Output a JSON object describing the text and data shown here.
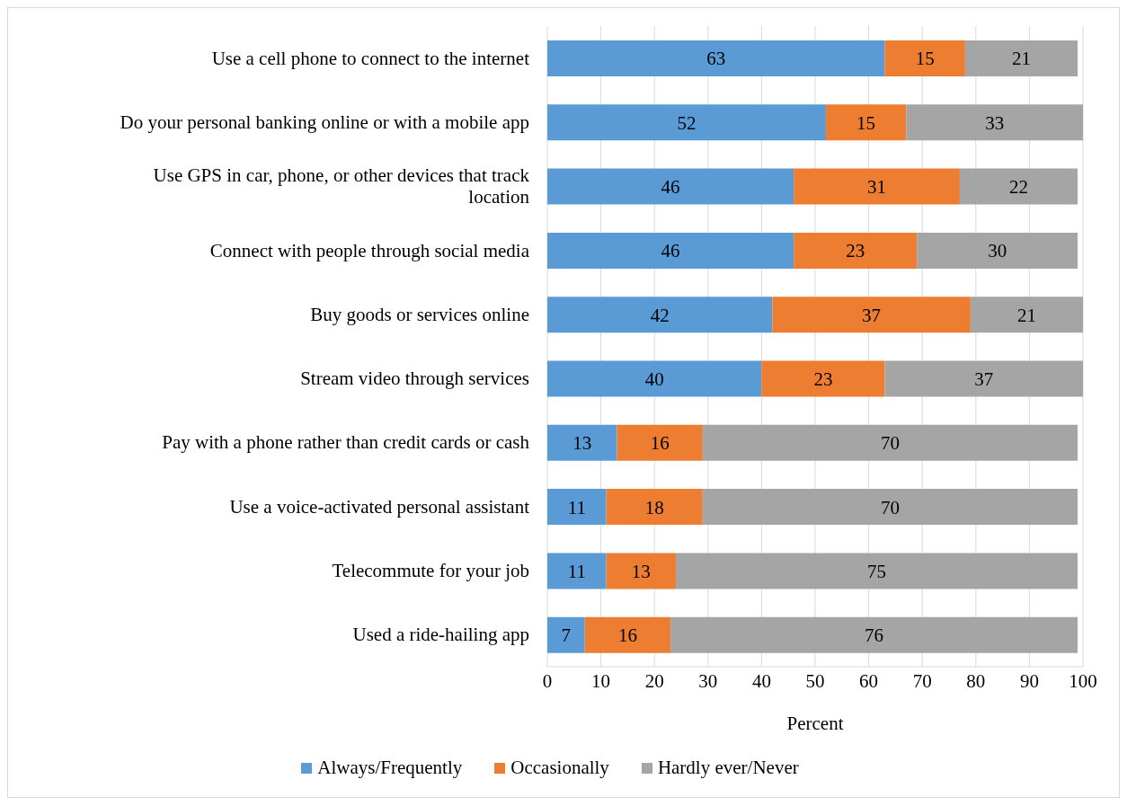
{
  "chart_data": {
    "type": "bar",
    "orientation": "horizontal",
    "stacked": true,
    "categories": [
      "Use a cell phone to connect to the internet",
      "Do your personal banking online or with a mobile app",
      "Use GPS in car, phone, or other devices that track location",
      "Connect with people through social media",
      "Buy goods or services online",
      "Stream video through services",
      "Pay with a phone rather than credit cards or cash",
      "Use a voice-activated personal assistant",
      "Telecommute for your job",
      "Used a ride-hailing app"
    ],
    "series": [
      {
        "name": "Always/Frequently",
        "color": "#5b9bd5",
        "values": [
          63,
          52,
          46,
          46,
          42,
          40,
          13,
          11,
          11,
          7
        ]
      },
      {
        "name": "Occasionally",
        "color": "#ed7d31",
        "values": [
          15,
          15,
          31,
          23,
          37,
          23,
          16,
          18,
          13,
          16
        ]
      },
      {
        "name": "Hardly ever/Never",
        "color": "#a5a5a5",
        "values": [
          21,
          33,
          22,
          30,
          21,
          37,
          70,
          70,
          75,
          76
        ]
      }
    ],
    "xlabel": "Percent",
    "xlim": [
      0,
      100
    ],
    "xticks": [
      0,
      10,
      20,
      30,
      40,
      50,
      60,
      70,
      80,
      90,
      100
    ],
    "grid": "x",
    "legend": "bottom",
    "data_labels": true
  }
}
